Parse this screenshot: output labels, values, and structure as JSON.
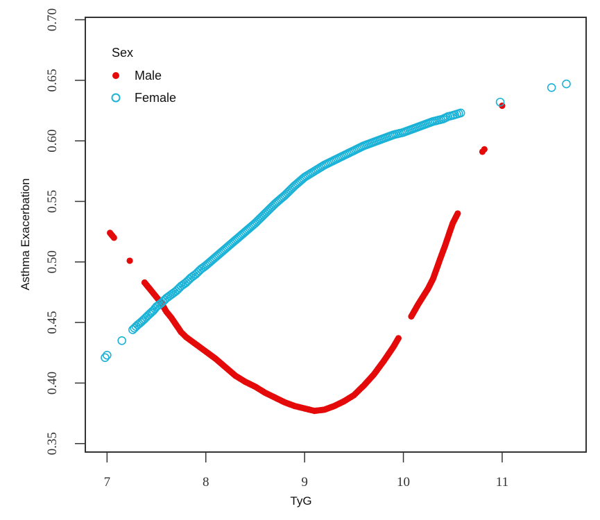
{
  "chart_data": {
    "type": "scatter",
    "title": "",
    "xlabel": "TyG",
    "ylabel": "Asthma Exacerbation",
    "xlim": [
      6.78,
      11.85
    ],
    "ylim": [
      0.343,
      0.702
    ],
    "xticks": [
      "7",
      "8",
      "9",
      "10",
      "11"
    ],
    "yticks": [
      "0.35",
      "0.40",
      "0.45",
      "0.50",
      "0.55",
      "0.60",
      "0.65",
      "0.70"
    ],
    "grid": false,
    "legend": {
      "title": "Sex",
      "placement": "top-left",
      "entries": [
        "Male",
        "Female"
      ]
    },
    "series": [
      {
        "name": "Male",
        "marker": "filled-circle",
        "color": "#e50a0a",
        "x": [
          7.03,
          7.07,
          7.23,
          7.38,
          7.45,
          7.5,
          7.55,
          7.6,
          7.65,
          7.7,
          7.75,
          7.8,
          7.85,
          7.9,
          8.0,
          8.1,
          8.2,
          8.3,
          8.4,
          8.5,
          8.6,
          8.7,
          8.8,
          8.9,
          9.0,
          9.1,
          9.2,
          9.3,
          9.4,
          9.5,
          9.6,
          9.7,
          9.8,
          9.9,
          9.95,
          10.08,
          10.15,
          10.25,
          10.3,
          10.37,
          10.42,
          10.47,
          10.5,
          10.55,
          10.8,
          10.82,
          11.0
        ],
        "y": [
          0.524,
          0.52,
          0.501,
          0.483,
          0.476,
          0.471,
          0.466,
          0.459,
          0.454,
          0.448,
          0.442,
          0.438,
          0.435,
          0.432,
          0.426,
          0.42,
          0.413,
          0.406,
          0.401,
          0.397,
          0.392,
          0.388,
          0.384,
          0.381,
          0.379,
          0.377,
          0.378,
          0.381,
          0.385,
          0.39,
          0.398,
          0.407,
          0.418,
          0.43,
          0.437,
          0.455,
          0.465,
          0.478,
          0.486,
          0.502,
          0.513,
          0.525,
          0.532,
          0.54,
          0.591,
          0.593,
          0.629
        ]
      },
      {
        "name": "Female",
        "marker": "open-circle",
        "color": "#1ab2d6",
        "x": [
          6.98,
          7.0,
          7.15,
          7.26,
          7.31,
          7.34,
          7.38,
          7.43,
          7.47,
          7.5,
          7.55,
          7.6,
          7.65,
          7.7,
          7.75,
          7.8,
          7.85,
          7.9,
          7.95,
          8.0,
          8.1,
          8.2,
          8.3,
          8.4,
          8.5,
          8.6,
          8.7,
          8.8,
          8.9,
          9.0,
          9.1,
          9.2,
          9.3,
          9.4,
          9.5,
          9.6,
          9.7,
          9.8,
          9.9,
          10.0,
          10.1,
          10.2,
          10.3,
          10.4,
          10.45,
          10.5,
          10.58,
          10.98,
          11.5,
          11.65
        ],
        "y": [
          0.421,
          0.423,
          0.435,
          0.444,
          0.448,
          0.45,
          0.453,
          0.457,
          0.46,
          0.463,
          0.466,
          0.47,
          0.473,
          0.476,
          0.48,
          0.483,
          0.487,
          0.49,
          0.494,
          0.497,
          0.504,
          0.511,
          0.518,
          0.525,
          0.532,
          0.54,
          0.548,
          0.555,
          0.563,
          0.57,
          0.575,
          0.58,
          0.584,
          0.588,
          0.592,
          0.596,
          0.599,
          0.602,
          0.605,
          0.607,
          0.61,
          0.613,
          0.616,
          0.618,
          0.62,
          0.621,
          0.623,
          0.632,
          0.644,
          0.647
        ]
      }
    ]
  }
}
